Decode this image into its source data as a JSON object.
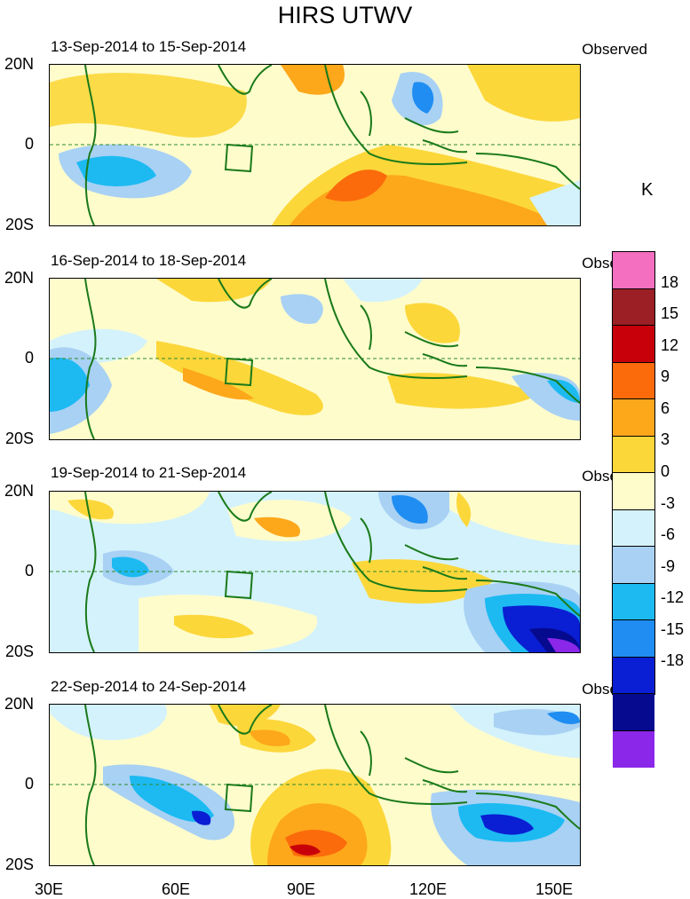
{
  "title": "HIRS UTWV",
  "panels": [
    {
      "date_range": "13-Sep-2014 to 15-Sep-2014",
      "label": "Observed"
    },
    {
      "date_range": "16-Sep-2014 to 18-Sep-2014",
      "label": "Observed"
    },
    {
      "date_range": "19-Sep-2014 to 21-Sep-2014",
      "label": "Observed"
    },
    {
      "date_range": "22-Sep-2014 to 24-Sep-2014",
      "label": "Observed"
    }
  ],
  "axes": {
    "lat_labels": [
      "20N",
      "0",
      "20S"
    ],
    "lon_labels": [
      "30E",
      "60E",
      "90E",
      "120E",
      "150E"
    ]
  },
  "colorbar": {
    "unit": "K",
    "tick_labels": [
      "18",
      "15",
      "12",
      "9",
      "6",
      "3",
      "0",
      "-3",
      "-6",
      "-9",
      "-12",
      "-15",
      "-18"
    ],
    "colors": [
      "#f46fc0",
      "#9b1f24",
      "#c8000a",
      "#fb6b0b",
      "#fda71b",
      "#fcd73a",
      "#fffccc",
      "#d4f2fb",
      "#a8d1f4",
      "#1dbaf2",
      "#1f8df2",
      "#0a1fd3",
      "#050a8f",
      "#8a27e8"
    ]
  }
}
